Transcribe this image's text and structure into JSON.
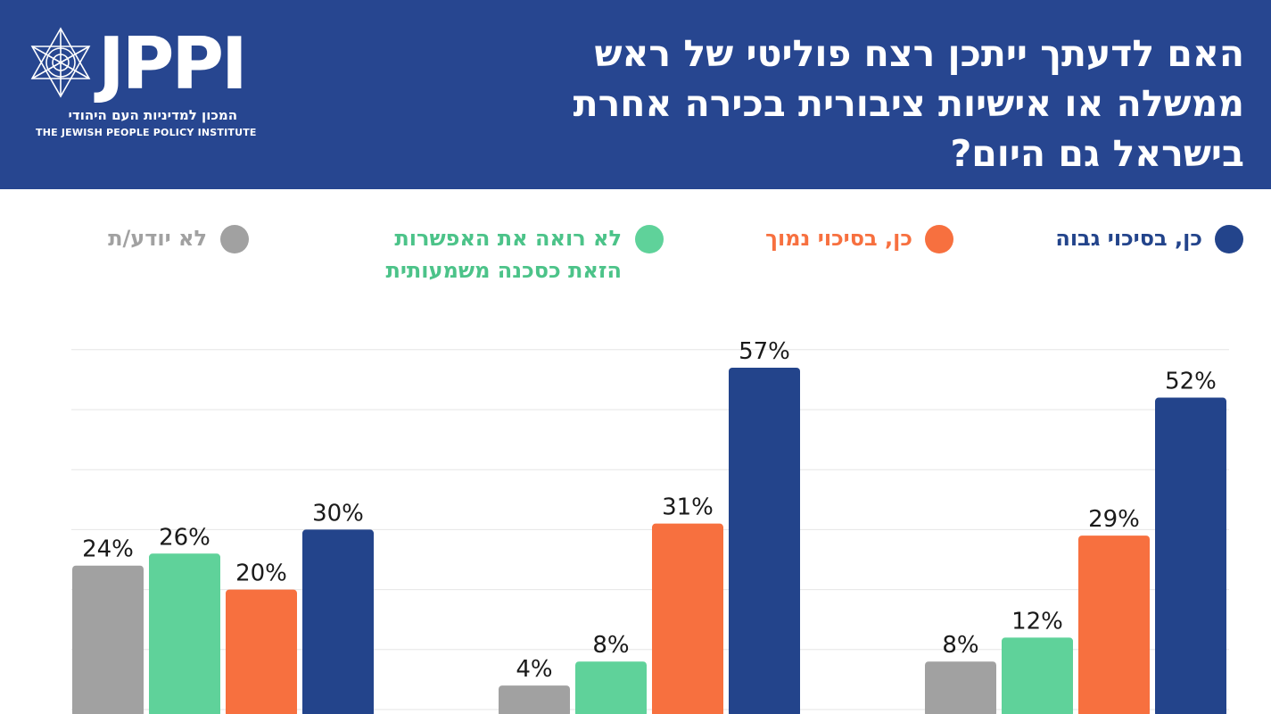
{
  "logo": {
    "letters": "JPPI",
    "hebrew_name": "המכון למדיניות העם היהודי",
    "english_name": "THE JEWISH PEOPLE POLICY INSTITUTE",
    "icon": "star-of-david-icon"
  },
  "colors": {
    "header_bg": "#274690",
    "high_risk": "#23448b",
    "low_risk": "#f7703f",
    "not_danger": "#5fd29a",
    "dont_know": "#a1a1a1"
  },
  "chart_data": {
    "type": "bar",
    "title": "האם לדעתך ייתכן רצח פוליטי של ראש ממשלה או אישיות ציבורית בכירה אחרת בישראל גם היום?",
    "categories": [
      "",
      "",
      ""
    ],
    "series": [
      {
        "name": "לא יודע/ת",
        "values": [
          24,
          4,
          8
        ]
      },
      {
        "name": "לא רואה את האפשרות הזאת כסכנה משמעותית",
        "values": [
          26,
          8,
          12
        ]
      },
      {
        "name": "כן, בסיכוי נמוך",
        "values": [
          20,
          31,
          29
        ]
      },
      {
        "name": "כן, בסיכוי גבוה",
        "values": [
          30,
          57,
          52
        ]
      }
    ],
    "value_suffix": "%",
    "ylim": [
      0,
      60
    ],
    "grid": true,
    "legend": "top",
    "legend_lines": {
      "dont_know": [
        "לא יודע/ת"
      ],
      "not_danger": [
        "לא רואה את האפשרות",
        "הזאת כסכנה משמעותית"
      ],
      "low_risk": [
        "כן, בסיכוי נמוך"
      ],
      "high_risk": [
        "כן, בסיכוי גבוה"
      ]
    },
    "title_lines": [
      "האם לדעתך ייתכן רצח פוליטי של ראש",
      "ממשלה או אישיות ציבורית בכירה אחרת",
      "בישראל גם היום?"
    ]
  }
}
